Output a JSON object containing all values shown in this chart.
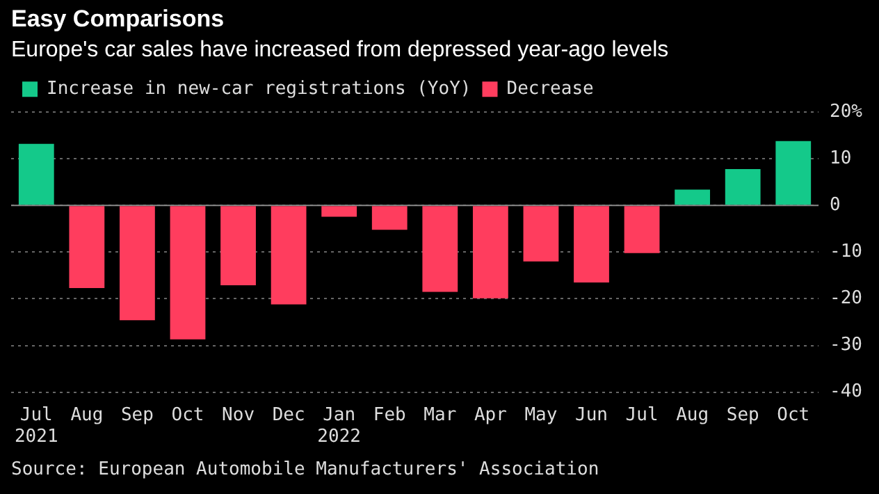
{
  "chart_data": {
    "type": "bar",
    "title": "Easy Comparisons",
    "subtitle": "Europe's car sales have increased from depressed year-ago levels",
    "categories": [
      "Jul\n2021",
      "Aug",
      "Sep",
      "Oct",
      "Nov",
      "Dec",
      "Jan\n2022",
      "Feb",
      "Mar",
      "Apr",
      "May",
      "Jun",
      "Jul",
      "Aug",
      "Sep",
      "Oct"
    ],
    "series": [
      {
        "name": "Increase in new-car registrations (YoY)",
        "color": "#14c98a",
        "values": [
          13.2,
          null,
          null,
          null,
          null,
          null,
          null,
          null,
          null,
          null,
          null,
          null,
          null,
          3.4,
          7.8,
          13.8
        ]
      },
      {
        "name": "Decrease",
        "color": "#ff3d5e",
        "values": [
          null,
          -17.7,
          -24.6,
          -28.7,
          -17.1,
          -21.2,
          -2.4,
          -5.2,
          -18.5,
          -19.9,
          -12.0,
          -16.5,
          -10.2,
          null,
          null,
          null
        ]
      }
    ],
    "stacked": true,
    "ylim": [
      -40,
      20
    ],
    "yticks": [
      -40,
      -30,
      -20,
      -10,
      0,
      10,
      {
        "value": 20,
        "label": "20%"
      }
    ],
    "grid": "y",
    "legend": "top left",
    "annotations": [
      "Source: European Automobile Manufacturers' Association"
    ]
  }
}
